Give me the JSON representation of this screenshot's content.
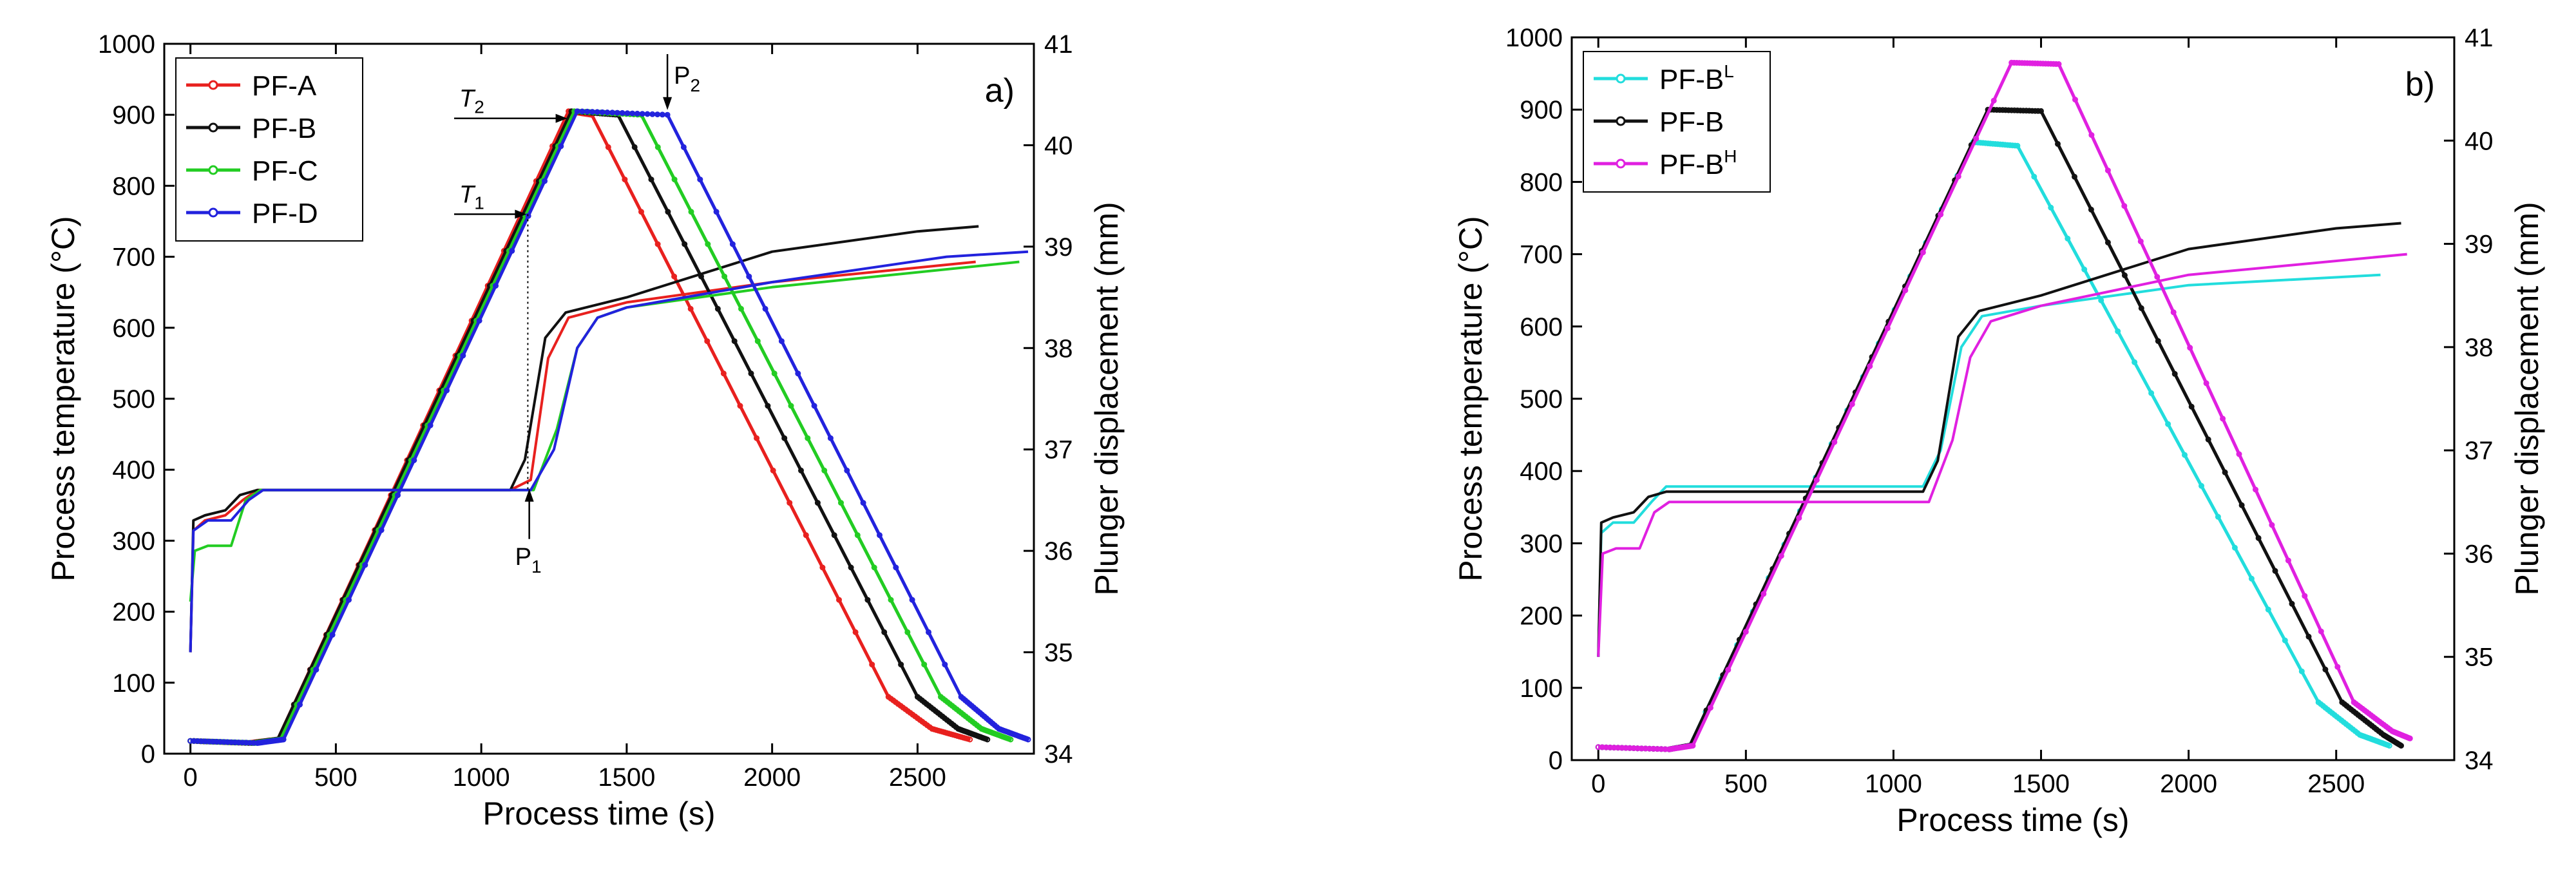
{
  "chart_data": [
    {
      "type": "line",
      "panel_label": "a)",
      "xlabel": "Process time (s)",
      "ylabel_left": "Process temperature (°C)",
      "ylabel_right": "Plunger displacement (mm)",
      "xlim": [
        -90,
        2900
      ],
      "ylim_left": [
        0,
        1000
      ],
      "ylim_right": [
        34,
        41
      ],
      "xticks": [
        0,
        500,
        1000,
        1500,
        2000,
        2500
      ],
      "yticks_left": [
        0,
        100,
        200,
        300,
        400,
        500,
        600,
        700,
        800,
        900,
        1000
      ],
      "yticks_right": [
        34,
        35,
        36,
        37,
        38,
        39,
        40,
        41
      ],
      "legend_position": "top-left",
      "series": [
        {
          "name": "PF-A",
          "base": "PF-A",
          "sup": "",
          "color": "#e8201e",
          "temperature": {
            "x": [
              0,
              200,
              300,
              1300,
              1380,
              2400,
              2550,
              2680
            ],
            "y": [
              18,
              15,
              20,
              905,
              900,
              80,
              35,
              20
            ]
          },
          "displacement": {
            "x": [
              0,
              10,
              50,
              120,
              180,
              230,
              1100,
              1170,
              1230,
              1300,
              1500,
              2000,
              2700
            ],
            "y": [
              35.0,
              36.2,
              36.3,
              36.35,
              36.5,
              36.6,
              36.6,
              36.7,
              37.9,
              38.3,
              38.45,
              38.65,
              38.85
            ]
          }
        },
        {
          "name": "PF-B",
          "base": "PF-B",
          "sup": "",
          "color": "#111111",
          "temperature": {
            "x": [
              0,
              210,
              300,
              1310,
              1470,
              2500,
              2640,
              2740
            ],
            "y": [
              18,
              15,
              20,
              905,
              900,
              80,
              35,
              20
            ]
          },
          "displacement": {
            "x": [
              0,
              10,
              50,
              120,
              170,
              230,
              1100,
              1150,
              1220,
              1290,
              1500,
              2000,
              2500,
              2710
            ],
            "y": [
              35.0,
              36.3,
              36.35,
              36.4,
              36.55,
              36.6,
              36.6,
              36.9,
              38.1,
              38.35,
              38.5,
              38.95,
              39.15,
              39.2
            ]
          }
        },
        {
          "name": "PF-C",
          "base": "PF-C",
          "sup": "",
          "color": "#22cc22",
          "temperature": {
            "x": [
              0,
              220,
              310,
              1320,
              1550,
              2580,
              2720,
              2820
            ],
            "y": [
              18,
              15,
              20,
              905,
              900,
              80,
              35,
              20
            ]
          },
          "displacement": {
            "x": [
              0,
              15,
              60,
              140,
              190,
              240,
              1180,
              1260,
              1330,
              1400,
              1500,
              2000,
              2850
            ],
            "y": [
              35.5,
              36.0,
              36.05,
              36.05,
              36.5,
              36.6,
              36.6,
              37.2,
              38.0,
              38.3,
              38.4,
              38.6,
              38.85
            ]
          }
        },
        {
          "name": "PF-D",
          "base": "PF-D",
          "sup": "",
          "color": "#2222dd",
          "temperature": {
            "x": [
              0,
              230,
              320,
              1330,
              1640,
              2650,
              2780,
              2880
            ],
            "y": [
              18,
              15,
              20,
              905,
              900,
              80,
              35,
              20
            ]
          },
          "displacement": {
            "x": [
              0,
              10,
              60,
              140,
              200,
              250,
              1170,
              1250,
              1330,
              1400,
              1500,
              2000,
              2600,
              2880
            ],
            "y": [
              35.0,
              36.2,
              36.3,
              36.3,
              36.5,
              36.6,
              36.6,
              37.0,
              38.0,
              38.3,
              38.4,
              38.65,
              38.9,
              38.95
            ]
          }
        }
      ],
      "annotations": [
        {
          "label": "T",
          "sub": "1",
          "x": 1160,
          "y": 760
        },
        {
          "label": "T",
          "sub": "2",
          "x": 1300,
          "y": 895
        },
        {
          "label": "P",
          "sub": "1",
          "x": 1165,
          "y": 375
        },
        {
          "label": "P",
          "sub": "2",
          "x": 1640,
          "y": 905
        }
      ]
    },
    {
      "type": "line",
      "panel_label": "b)",
      "xlabel": "Process time (s)",
      "ylabel_left": "Process temperature (°C)",
      "ylabel_right": "Plunger displacement (mm)",
      "xlim": [
        -90,
        2900
      ],
      "ylim_left": [
        0,
        1000
      ],
      "ylim_right": [
        34,
        41
      ],
      "xticks": [
        0,
        500,
        1000,
        1500,
        2000,
        2500
      ],
      "yticks_left": [
        0,
        100,
        200,
        300,
        400,
        500,
        600,
        700,
        800,
        900,
        1000
      ],
      "yticks_right": [
        34,
        35,
        36,
        37,
        38,
        39,
        40,
        41
      ],
      "legend_position": "top-left",
      "series": [
        {
          "name": "PF-B^L",
          "base": "PF-B",
          "sup": "L",
          "color": "#22dddd",
          "temperature": {
            "x": [
              0,
              240,
              310,
              1270,
              1420,
              2440,
              2580,
              2680
            ],
            "y": [
              18,
              15,
              20,
              855,
              850,
              80,
              35,
              20
            ]
          },
          "displacement": {
            "x": [
              0,
              10,
              50,
              120,
              180,
              230,
              1100,
              1160,
              1230,
              1300,
              1500,
              2000,
              2650
            ],
            "y": [
              35.0,
              36.2,
              36.3,
              36.3,
              36.5,
              36.65,
              36.65,
              37.0,
              38.0,
              38.3,
              38.4,
              38.6,
              38.7
            ]
          }
        },
        {
          "name": "PF-B",
          "base": "PF-B",
          "sup": "",
          "color": "#111111",
          "temperature": {
            "x": [
              0,
              240,
              310,
              1320,
              1500,
              2520,
              2660,
              2720
            ],
            "y": [
              18,
              15,
              20,
              900,
              898,
              80,
              35,
              20
            ]
          },
          "displacement": {
            "x": [
              0,
              10,
              50,
              120,
              170,
              230,
              1100,
              1150,
              1220,
              1290,
              1500,
              2000,
              2500,
              2720
            ],
            "y": [
              35.0,
              36.3,
              36.35,
              36.4,
              36.55,
              36.6,
              36.6,
              36.9,
              38.1,
              38.35,
              38.5,
              38.95,
              39.15,
              39.2
            ]
          }
        },
        {
          "name": "PF-B^H",
          "base": "PF-B",
          "sup": "H",
          "color": "#e020e0",
          "temperature": {
            "x": [
              0,
              240,
              320,
              1400,
              1560,
              2560,
              2690,
              2750
            ],
            "y": [
              18,
              15,
              20,
              965,
              963,
              80,
              40,
              30
            ]
          },
          "displacement": {
            "x": [
              0,
              15,
              60,
              140,
              190,
              240,
              1120,
              1200,
              1260,
              1330,
              1500,
              2000,
              2740
            ],
            "y": [
              35.0,
              36.0,
              36.05,
              36.05,
              36.4,
              36.5,
              36.5,
              37.1,
              37.9,
              38.25,
              38.4,
              38.7,
              38.9
            ]
          }
        }
      ],
      "annotations": []
    }
  ]
}
